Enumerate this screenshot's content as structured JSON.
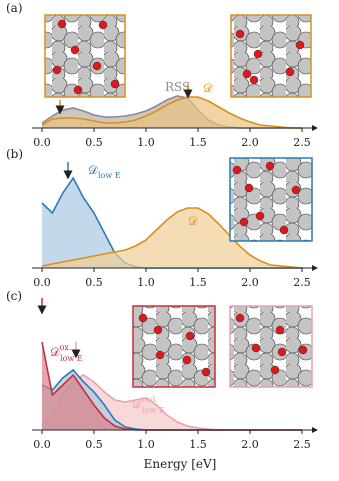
{
  "chart_data": [
    {
      "type": "area",
      "panel": "(a)",
      "x": [
        0,
        0.1,
        0.2,
        0.3,
        0.4,
        0.5,
        0.6,
        0.7,
        0.8,
        0.9,
        1.0,
        1.1,
        1.2,
        1.3,
        1.4,
        1.5,
        1.6,
        1.7,
        1.8,
        1.9,
        2.0,
        2.1,
        2.2,
        2.3,
        2.4,
        2.5
      ],
      "xlim": [
        -0.1,
        2.65
      ],
      "ylim": [
        0,
        100
      ],
      "xticks": [
        {
          "value": 0,
          "label": "0.0"
        },
        {
          "value": 0.5,
          "label": "0.5"
        },
        {
          "value": 1,
          "label": "1.0"
        },
        {
          "value": 1.5,
          "label": "1.5"
        },
        {
          "value": 2,
          "label": "2.0"
        },
        {
          "value": 2.5,
          "label": "2.5"
        }
      ],
      "series": [
        {
          "name": "RSS",
          "color": "#8c8c8c",
          "fill": "#b7aea3",
          "values": [
            5,
            12,
            18,
            20,
            17,
            13,
            11,
            11,
            12,
            14,
            17,
            22,
            28,
            32,
            30,
            18,
            8,
            3,
            1,
            0,
            0,
            0,
            0,
            0,
            0,
            0
          ]
        },
        {
          "name": "𝒟",
          "color": "#d9901a",
          "fill": "#e9c27f",
          "values": [
            3,
            9,
            10,
            10,
            9,
            7,
            5,
            5,
            6,
            8,
            12,
            17,
            23,
            28,
            31,
            31,
            27,
            21,
            15,
            10,
            6,
            3,
            2,
            1,
            0,
            0
          ]
        }
      ]
    },
    {
      "type": "area",
      "panel": "(b)",
      "x": [
        0,
        0.1,
        0.2,
        0.3,
        0.4,
        0.5,
        0.6,
        0.7,
        0.8,
        0.9,
        1.0,
        1.1,
        1.2,
        1.3,
        1.4,
        1.5,
        1.6,
        1.7,
        1.8,
        1.9,
        2.0,
        2.1,
        2.2,
        2.3,
        2.4,
        2.5
      ],
      "xlim": [
        -0.1,
        2.65
      ],
      "ylim": [
        0,
        100
      ],
      "xticks": [
        {
          "value": 0,
          "label": "0.0"
        },
        {
          "value": 0.5,
          "label": "0.5"
        },
        {
          "value": 1,
          "label": "1.0"
        },
        {
          "value": 1.5,
          "label": "1.5"
        },
        {
          "value": 2,
          "label": "2.0"
        },
        {
          "value": 2.5,
          "label": "2.5"
        }
      ],
      "series": [
        {
          "name": "𝒟",
          "name_sub": "low E",
          "color": "#2a7ab8",
          "fill": "#a9c9e3",
          "values": [
            65,
            55,
            75,
            90,
            70,
            55,
            35,
            15,
            5,
            1,
            0,
            0,
            0,
            0,
            0,
            0,
            0,
            0,
            0,
            0,
            0,
            0,
            0,
            0,
            0,
            0
          ]
        },
        {
          "name": "𝒟",
          "color": "#d9901a",
          "fill": "#f0cf95",
          "values": [
            2,
            4,
            6,
            8,
            10,
            12,
            14,
            16,
            18,
            22,
            28,
            38,
            48,
            56,
            60,
            60,
            54,
            44,
            33,
            22,
            13,
            7,
            3,
            2,
            1,
            0
          ]
        }
      ]
    },
    {
      "type": "area",
      "panel": "(c)",
      "xlabel": "Energy [eV]",
      "x": [
        0,
        0.1,
        0.2,
        0.3,
        0.4,
        0.5,
        0.6,
        0.7,
        0.8,
        0.9,
        1.0,
        1.1,
        1.2,
        1.3,
        1.4,
        1.5,
        1.6,
        1.7,
        1.8,
        1.9,
        2.0,
        2.1,
        2.2,
        2.3,
        2.4,
        2.5
      ],
      "xlim": [
        -0.1,
        2.65
      ],
      "ylim": [
        0,
        100
      ],
      "xticks": [
        {
          "value": 0,
          "label": "0.0"
        },
        {
          "value": 0.5,
          "label": "0.5"
        },
        {
          "value": 1,
          "label": "1.0"
        },
        {
          "value": 1.5,
          "label": "1.5"
        },
        {
          "value": 2,
          "label": "2.0"
        },
        {
          "value": 2.5,
          "label": "2.5"
        }
      ],
      "series": [
        {
          "name": "𝒟",
          "name_sup": "red.",
          "name_sub": "low E",
          "color": "#e9a3a8",
          "fill": "#f3c9cc",
          "values": [
            5,
            15,
            35,
            50,
            55,
            48,
            38,
            30,
            28,
            30,
            32,
            25,
            15,
            8,
            4,
            2,
            1,
            0,
            0,
            0,
            0,
            0,
            0,
            0,
            0,
            0
          ]
        },
        {
          "color": "#2a7ab8",
          "fill": "#a9c9e3",
          "values": [
            45,
            40,
            52,
            60,
            48,
            38,
            25,
            10,
            3,
            1,
            0,
            0,
            0,
            0,
            0,
            0,
            0,
            0,
            0,
            0,
            0,
            0,
            0,
            0,
            0,
            0
          ]
        },
        {
          "name": "𝒟",
          "name_sup": "ox.",
          "name_sub": "low E",
          "color": "#c62f3c",
          "fill": "#d98088",
          "values": [
            88,
            35,
            45,
            55,
            40,
            25,
            12,
            4,
            1,
            0,
            0,
            0,
            0,
            0,
            0,
            0,
            0,
            0,
            0,
            0,
            0,
            0,
            0,
            0,
            0,
            0
          ]
        }
      ]
    }
  ]
}
